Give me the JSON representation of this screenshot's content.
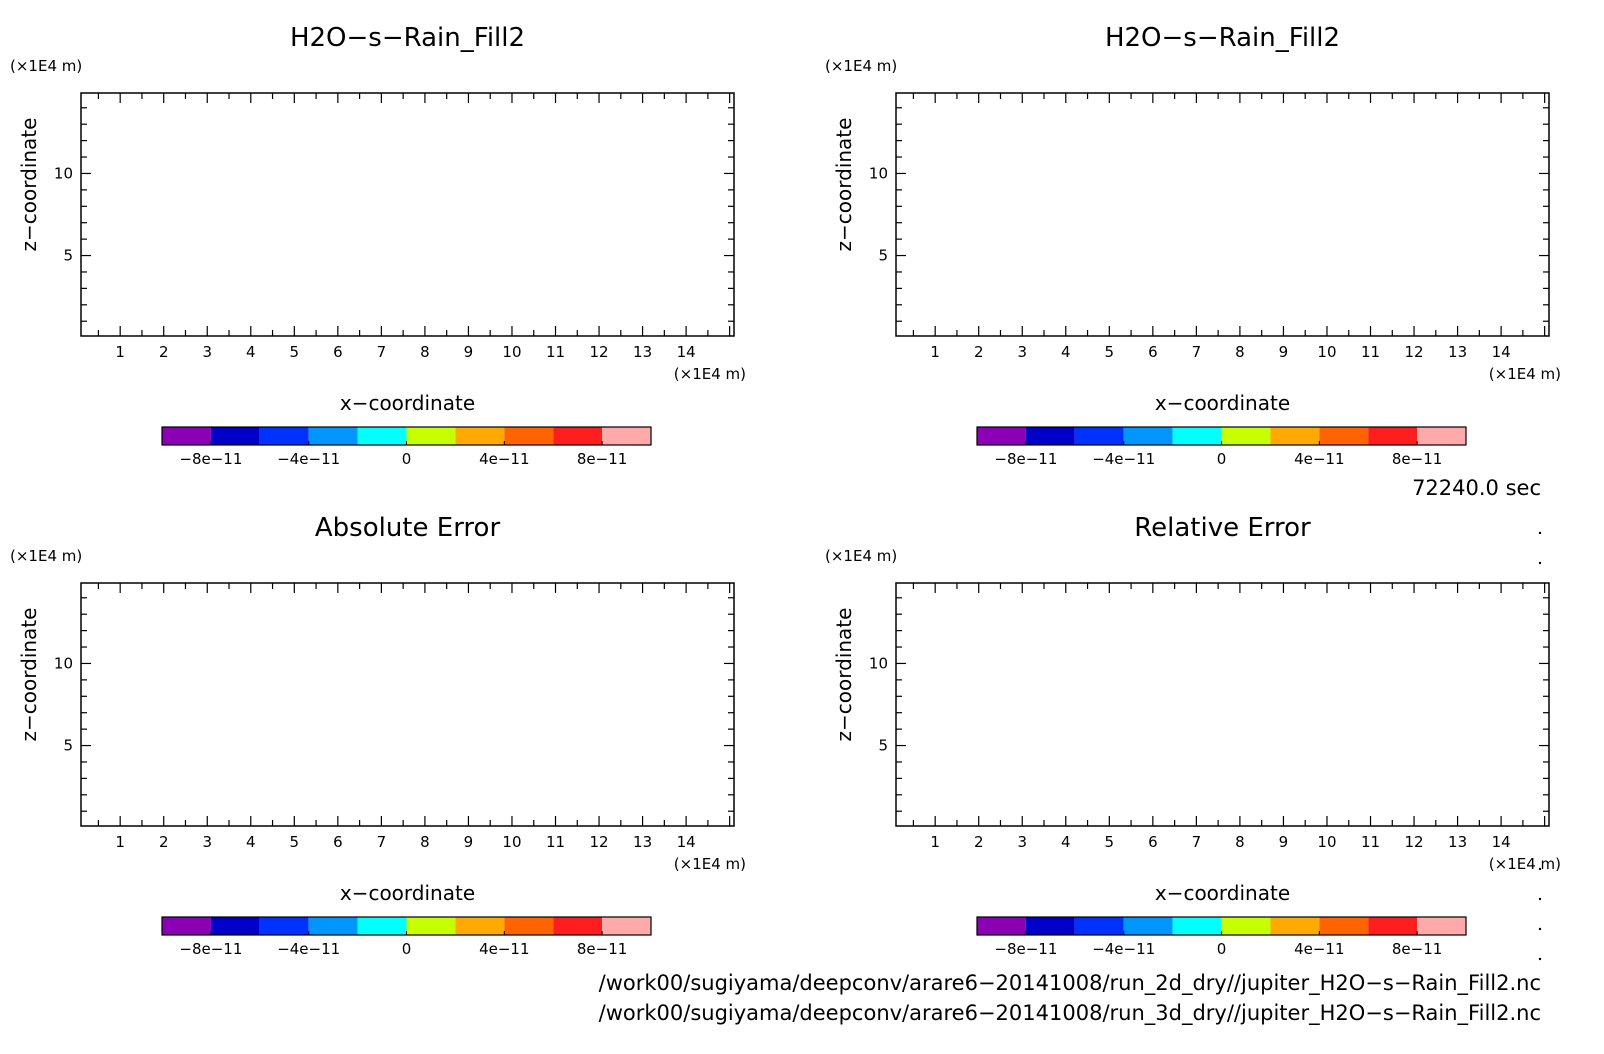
{
  "chart_data": [
    {
      "type": "heatmap",
      "title": "H2O−s−Rain_Fill2",
      "xlabel": "x−coordinate",
      "ylabel": "z−coordinate",
      "x_unit": "(×1E4 m)",
      "y_unit": "(×1E4 m)",
      "xlim": [
        0.1,
        15.1
      ],
      "ylim": [
        0.1,
        14.9
      ],
      "x_ticks": [
        1,
        2,
        3,
        4,
        5,
        6,
        7,
        8,
        9,
        10,
        11,
        12,
        13,
        14
      ],
      "y_ticks": [
        5,
        10
      ],
      "values": [],
      "colorbar": {
        "colors": [
          "#8b00b4",
          "#0000c8",
          "#0032ff",
          "#0096ff",
          "#00ffff",
          "#c8ff00",
          "#ffaa00",
          "#ff6400",
          "#ff1e1e",
          "#ffaaaa"
        ],
        "tick_labels": [
          "−8e−11",
          "−4e−11",
          "0",
          "4e−11",
          "8e−11"
        ]
      }
    },
    {
      "type": "heatmap",
      "title": "H2O−s−Rain_Fill2",
      "xlabel": "x−coordinate",
      "ylabel": "z−coordinate",
      "x_unit": "(×1E4 m)",
      "y_unit": "(×1E4 m)",
      "xlim": [
        0.1,
        15.1
      ],
      "ylim": [
        0.1,
        14.9
      ],
      "x_ticks": [
        1,
        2,
        3,
        4,
        5,
        6,
        7,
        8,
        9,
        10,
        11,
        12,
        13,
        14
      ],
      "y_ticks": [
        5,
        10
      ],
      "values": [],
      "colorbar": {
        "colors": [
          "#8b00b4",
          "#0000c8",
          "#0032ff",
          "#0096ff",
          "#00ffff",
          "#c8ff00",
          "#ffaa00",
          "#ff6400",
          "#ff1e1e",
          "#ffaaaa"
        ],
        "tick_labels": [
          "−8e−11",
          "−4e−11",
          "0",
          "4e−11",
          "8e−11"
        ]
      }
    },
    {
      "type": "heatmap",
      "title": "Absolute Error",
      "xlabel": "x−coordinate",
      "ylabel": "z−coordinate",
      "x_unit": "(×1E4 m)",
      "y_unit": "(×1E4 m)",
      "xlim": [
        0.1,
        15.1
      ],
      "ylim": [
        0.1,
        14.9
      ],
      "x_ticks": [
        1,
        2,
        3,
        4,
        5,
        6,
        7,
        8,
        9,
        10,
        11,
        12,
        13,
        14
      ],
      "y_ticks": [
        5,
        10
      ],
      "values": [],
      "colorbar": {
        "colors": [
          "#8b00b4",
          "#0000c8",
          "#0032ff",
          "#0096ff",
          "#00ffff",
          "#c8ff00",
          "#ffaa00",
          "#ff6400",
          "#ff1e1e",
          "#ffaaaa"
        ],
        "tick_labels": [
          "−8e−11",
          "−4e−11",
          "0",
          "4e−11",
          "8e−11"
        ]
      }
    },
    {
      "type": "heatmap",
      "title": "Relative Error",
      "xlabel": "x−coordinate",
      "ylabel": "z−coordinate",
      "x_unit": "(×1E4 m)",
      "y_unit": "(×1E4 m)",
      "xlim": [
        0.1,
        15.1
      ],
      "ylim": [
        0.1,
        14.9
      ],
      "x_ticks": [
        1,
        2,
        3,
        4,
        5,
        6,
        7,
        8,
        9,
        10,
        11,
        12,
        13,
        14
      ],
      "y_ticks": [
        5,
        10
      ],
      "values": [],
      "colorbar": {
        "colors": [
          "#8b00b4",
          "#0000c8",
          "#0032ff",
          "#0096ff",
          "#00ffff",
          "#c8ff00",
          "#ffaa00",
          "#ff6400",
          "#ff1e1e",
          "#ffaaaa"
        ],
        "tick_labels": [
          "−8e−11",
          "−4e−11",
          "0",
          "4e−11",
          "8e−11"
        ]
      }
    }
  ],
  "timestamp": "72240.0 sec",
  "file_paths": [
    "/work00/sugiyama/deepconv/arare6−20141008/run_2d_dry//jupiter_H2O−s−Rain_Fill2.nc",
    "/work00/sugiyama/deepconv/arare6−20141008/run_3d_dry//jupiter_H2O−s−Rain_Fill2.nc"
  ]
}
